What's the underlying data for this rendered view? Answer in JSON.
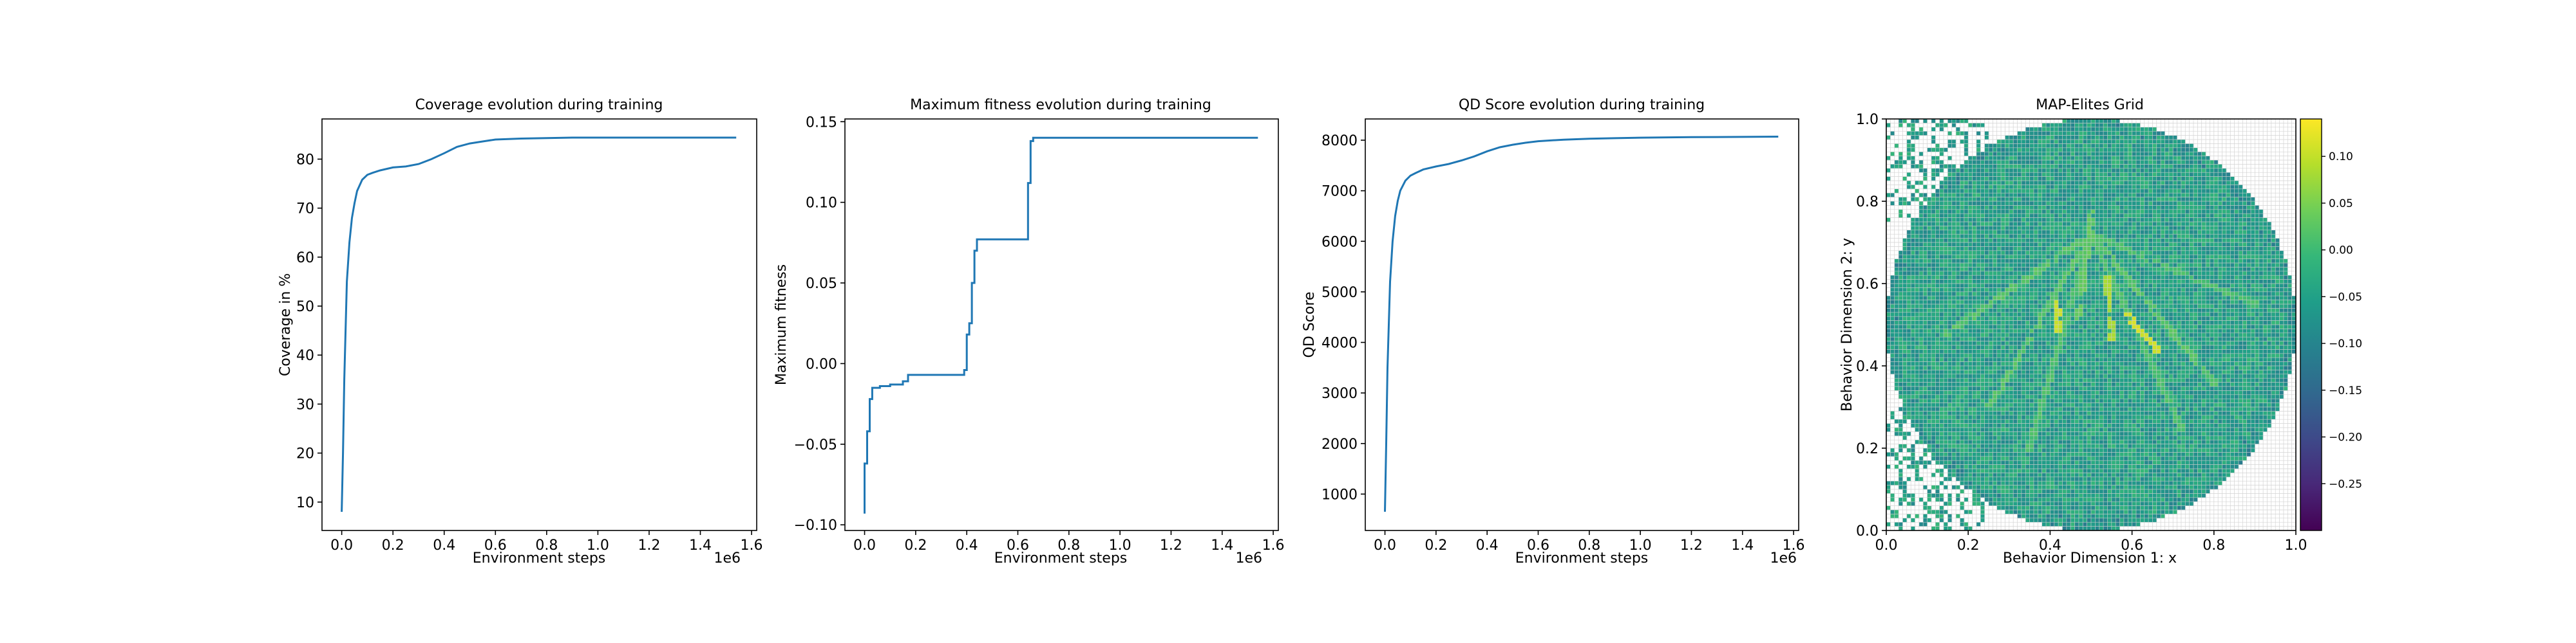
{
  "chart_data": [
    {
      "type": "line",
      "title": "Coverage evolution during training",
      "xlabel": "Environment steps",
      "ylabel": "Coverage in %",
      "x_offset_text": "1e6",
      "xlim": [
        -0.077,
        1.62
      ],
      "ylim": [
        4.2,
        88.2
      ],
      "xticks": [
        0.0,
        0.2,
        0.4,
        0.6,
        0.8,
        1.0,
        1.2,
        1.4,
        1.6
      ],
      "xtick_labels": [
        "0.0",
        "0.2",
        "0.4",
        "0.6",
        "0.8",
        "1.0",
        "1.2",
        "1.4",
        "1.6"
      ],
      "yticks": [
        10,
        20,
        30,
        40,
        50,
        60,
        70,
        80
      ],
      "ytick_labels": [
        "10",
        "20",
        "30",
        "40",
        "50",
        "60",
        "70",
        "80"
      ],
      "series": [
        {
          "color": "#1f77b4",
          "x": [
            0.0,
            0.005,
            0.01,
            0.02,
            0.03,
            0.04,
            0.05,
            0.06,
            0.08,
            0.1,
            0.12,
            0.15,
            0.2,
            0.25,
            0.3,
            0.35,
            0.4,
            0.45,
            0.5,
            0.55,
            0.6,
            0.7,
            0.8,
            0.9,
            1.0,
            1.2,
            1.4,
            1.54
          ],
          "y": [
            8.0,
            20.0,
            35.0,
            55.0,
            63.0,
            68.0,
            71.0,
            73.5,
            75.8,
            76.8,
            77.2,
            77.7,
            78.3,
            78.5,
            79.0,
            80.0,
            81.2,
            82.5,
            83.2,
            83.6,
            84.0,
            84.2,
            84.3,
            84.4,
            84.4,
            84.4,
            84.4,
            84.4
          ]
        }
      ]
    },
    {
      "type": "line",
      "title": "Maximum fitness evolution during training",
      "xlabel": "Environment steps",
      "ylabel": "Maximum fitness",
      "x_offset_text": "1e6",
      "xlim": [
        -0.077,
        1.62
      ],
      "ylim": [
        -0.1035,
        0.1517
      ],
      "xticks": [
        0.0,
        0.2,
        0.4,
        0.6,
        0.8,
        1.0,
        1.2,
        1.4,
        1.6
      ],
      "xtick_labels": [
        "0.0",
        "0.2",
        "0.4",
        "0.6",
        "0.8",
        "1.0",
        "1.2",
        "1.4",
        "1.6"
      ],
      "yticks": [
        -0.1,
        -0.05,
        0.0,
        0.05,
        0.1,
        0.15
      ],
      "ytick_labels": [
        "−0.10",
        "−0.05",
        "0.00",
        "0.05",
        "0.10",
        "0.15"
      ],
      "series": [
        {
          "color": "#1f77b4",
          "x": [
            0.0,
            0.0,
            0.01,
            0.01,
            0.02,
            0.02,
            0.03,
            0.03,
            0.06,
            0.06,
            0.1,
            0.1,
            0.15,
            0.15,
            0.17,
            0.17,
            0.39,
            0.39,
            0.4,
            0.4,
            0.41,
            0.41,
            0.42,
            0.42,
            0.43,
            0.43,
            0.44,
            0.44,
            0.46,
            0.46,
            0.64,
            0.64,
            0.65,
            0.65,
            0.66,
            0.66,
            1.54
          ],
          "y": [
            -0.093,
            -0.062,
            -0.062,
            -0.042,
            -0.042,
            -0.022,
            -0.022,
            -0.015,
            -0.015,
            -0.014,
            -0.014,
            -0.013,
            -0.013,
            -0.011,
            -0.011,
            -0.007,
            -0.007,
            -0.004,
            -0.004,
            0.018,
            0.018,
            0.025,
            0.025,
            0.05,
            0.05,
            0.07,
            0.07,
            0.077,
            0.077,
            0.077,
            0.077,
            0.112,
            0.112,
            0.138,
            0.138,
            0.14,
            0.14
          ]
        }
      ]
    },
    {
      "type": "line",
      "title": "QD Score evolution during training",
      "xlabel": "Environment steps",
      "ylabel": "QD Score",
      "x_offset_text": "1e6",
      "xlim": [
        -0.077,
        1.62
      ],
      "ylim": [
        280,
        8420
      ],
      "xticks": [
        0.0,
        0.2,
        0.4,
        0.6,
        0.8,
        1.0,
        1.2,
        1.4,
        1.6
      ],
      "xtick_labels": [
        "0.0",
        "0.2",
        "0.4",
        "0.6",
        "0.8",
        "1.0",
        "1.2",
        "1.4",
        "1.6"
      ],
      "yticks": [
        1000,
        2000,
        3000,
        4000,
        5000,
        6000,
        7000,
        8000
      ],
      "ytick_labels": [
        "1000",
        "2000",
        "3000",
        "4000",
        "5000",
        "6000",
        "7000",
        "8000"
      ],
      "series": [
        {
          "color": "#1f77b4",
          "x": [
            0.0,
            0.005,
            0.01,
            0.02,
            0.03,
            0.04,
            0.05,
            0.06,
            0.08,
            0.1,
            0.12,
            0.15,
            0.2,
            0.25,
            0.3,
            0.35,
            0.4,
            0.45,
            0.5,
            0.55,
            0.6,
            0.7,
            0.8,
            0.9,
            1.0,
            1.2,
            1.4,
            1.54
          ],
          "y": [
            650,
            2000,
            3500,
            5200,
            6000,
            6500,
            6800,
            7000,
            7200,
            7300,
            7350,
            7420,
            7480,
            7530,
            7600,
            7680,
            7780,
            7860,
            7910,
            7950,
            7980,
            8010,
            8030,
            8040,
            8050,
            8060,
            8065,
            8070
          ]
        }
      ]
    },
    {
      "type": "heatmap",
      "title": "MAP-Elites Grid",
      "xlabel": "Behavior Dimension 1: x",
      "ylabel": "Behavior Dimension 2: y",
      "xlim": [
        0.0,
        1.0
      ],
      "ylim": [
        0.0,
        1.0
      ],
      "grid": true,
      "xticks": [
        0.0,
        0.2,
        0.4,
        0.6,
        0.8,
        1.0
      ],
      "xtick_labels": [
        "0.0",
        "0.2",
        "0.4",
        "0.6",
        "0.8",
        "1.0"
      ],
      "yticks": [
        0.0,
        0.2,
        0.4,
        0.6,
        0.8,
        1.0
      ],
      "ytick_labels": [
        "0.0",
        "0.2",
        "0.4",
        "0.6",
        "0.8",
        "1.0"
      ],
      "colormap": "viridis",
      "colorbar_range": [
        -0.3,
        0.14
      ],
      "colorbar_ticks": [
        0.1,
        0.05,
        0.0,
        -0.05,
        -0.1,
        -0.15,
        -0.2,
        -0.25
      ],
      "colorbar_tick_labels": [
        "0.10",
        "0.05",
        "0.00",
        "−0.05",
        "−0.10",
        "−0.15",
        "−0.20",
        "−0.25"
      ],
      "grid_cells": 100,
      "filled_region": "disc centered at (0.5, 0.5) with radius 0.5, plus scattered cells in the top-left and bottom-left corners",
      "typical_value": -0.05,
      "highlight_segments": [
        {
          "from": [
            0.42,
            0.55
          ],
          "to": [
            0.42,
            0.49
          ],
          "value": 0.11
        },
        {
          "from": [
            0.54,
            0.61
          ],
          "to": [
            0.55,
            0.47
          ],
          "value": 0.09
        },
        {
          "from": [
            0.59,
            0.52
          ],
          "to": [
            0.67,
            0.43
          ],
          "value": 0.12
        },
        {
          "from": [
            0.5,
            0.77
          ],
          "to": [
            0.47,
            0.52
          ],
          "value": 0.04
        },
        {
          "from": [
            0.5,
            0.72
          ],
          "to": [
            0.15,
            0.48
          ],
          "value": 0.03
        },
        {
          "from": [
            0.5,
            0.72
          ],
          "to": [
            0.25,
            0.3
          ],
          "value": 0.03
        },
        {
          "from": [
            0.5,
            0.72
          ],
          "to": [
            0.8,
            0.36
          ],
          "value": 0.03
        },
        {
          "from": [
            0.5,
            0.72
          ],
          "to": [
            0.9,
            0.55
          ],
          "value": 0.02
        },
        {
          "from": [
            0.5,
            0.72
          ],
          "to": [
            0.35,
            0.2
          ],
          "value": 0.02
        },
        {
          "from": [
            0.5,
            0.72
          ],
          "to": [
            0.72,
            0.25
          ],
          "value": 0.02
        }
      ]
    }
  ]
}
